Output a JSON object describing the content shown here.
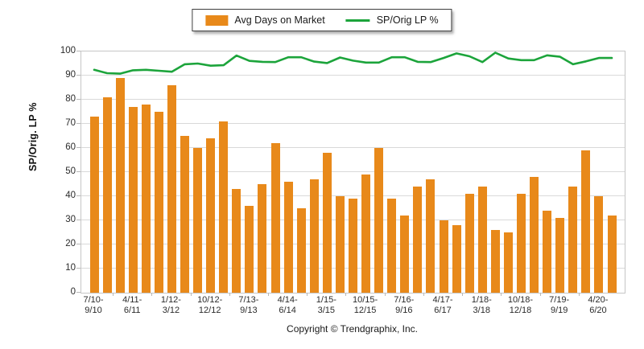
{
  "legend": {
    "items": [
      {
        "label": "Avg Days on Market",
        "swatch": "bar",
        "color": "#E8891A"
      },
      {
        "label": "SP/Orig LP %",
        "swatch": "line",
        "color": "#1CA43B"
      }
    ]
  },
  "axis": {
    "y_title": "SP/Orig. LP %"
  },
  "footer": {
    "copyright": "Copyright © Trendgraphix, Inc."
  },
  "chart_data": {
    "type": "bar",
    "x_count": 41,
    "categories_note": "quarterly periods; every 3rd bar labeled",
    "x_tick_labels": [
      {
        "at": 0,
        "lines": [
          "7/10-",
          "9/10"
        ]
      },
      {
        "at": 3,
        "lines": [
          "4/11-",
          "6/11"
        ]
      },
      {
        "at": 6,
        "lines": [
          "1/12-",
          "3/12"
        ]
      },
      {
        "at": 9,
        "lines": [
          "10/12-",
          "12/12"
        ]
      },
      {
        "at": 12,
        "lines": [
          "7/13-",
          "9/13"
        ]
      },
      {
        "at": 15,
        "lines": [
          "4/14-",
          "6/14"
        ]
      },
      {
        "at": 18,
        "lines": [
          "1/15-",
          "3/15"
        ]
      },
      {
        "at": 21,
        "lines": [
          "10/15-",
          "12/15"
        ]
      },
      {
        "at": 24,
        "lines": [
          "7/16-",
          "9/16"
        ]
      },
      {
        "at": 27,
        "lines": [
          "4/17-",
          "6/17"
        ]
      },
      {
        "at": 30,
        "lines": [
          "1/18-",
          "3/18"
        ]
      },
      {
        "at": 33,
        "lines": [
          "10/18-",
          "12/18"
        ]
      },
      {
        "at": 36,
        "lines": [
          "7/19-",
          "9/19"
        ]
      },
      {
        "at": 39,
        "lines": [
          "4/20-",
          "6/20"
        ]
      }
    ],
    "series": [
      {
        "name": "Avg Days on Market",
        "type": "bar",
        "color": "#E8891A",
        "values": [
          73,
          81,
          89,
          77,
          78,
          75,
          86,
          65,
          60,
          64,
          71,
          43,
          36,
          45,
          62,
          46,
          35,
          47,
          58,
          40,
          39,
          49,
          60,
          39,
          32,
          44,
          47,
          30,
          28,
          41,
          44,
          26,
          25,
          41,
          48,
          34,
          31,
          44,
          59,
          40,
          32
        ]
      },
      {
        "name": "SP/Orig LP %",
        "type": "line",
        "color": "#1CA43B",
        "values": [
          92.4,
          91,
          90.8,
          92.2,
          92.4,
          92,
          91.6,
          94.7,
          95,
          94.1,
          94.3,
          98.3,
          96.1,
          95.7,
          95.6,
          97.6,
          97.6,
          95.8,
          95.2,
          97.5,
          96.2,
          95.4,
          95.4,
          97.6,
          97.6,
          95.7,
          95.6,
          97.3,
          99.2,
          98,
          95.6,
          99.5,
          97.1,
          96.4,
          96.4,
          98.4,
          97.8,
          94.7,
          95.9,
          97.3,
          97.3
        ]
      }
    ],
    "ylabel": "SP/Orig. LP %",
    "ylim": [
      0,
      100
    ],
    "ytick_step": 10,
    "grid": "horizontal",
    "legend_position": "top-center"
  }
}
